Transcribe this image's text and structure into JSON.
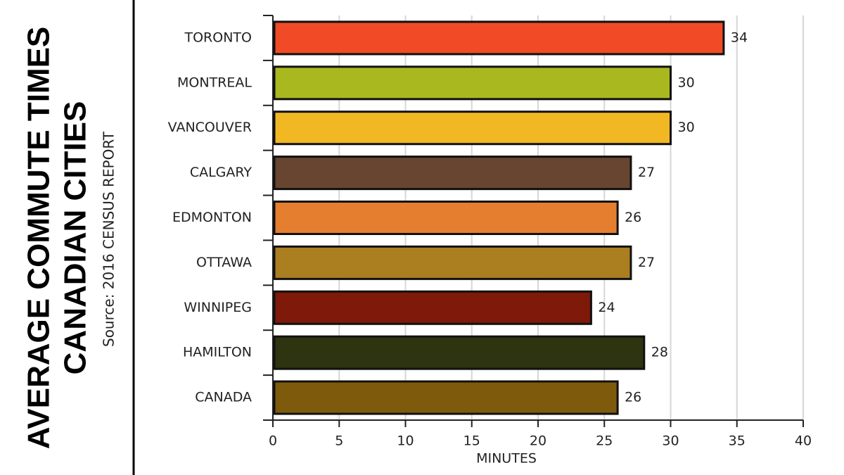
{
  "chart_data": {
    "type": "bar",
    "orientation": "horizontal",
    "title": "AVERAGE COMMUTE TIMES",
    "subtitle": "CANADIAN CITIES",
    "source": "Source: 2016 CENSUS REPORT",
    "xlabel": "MINUTES",
    "categories": [
      "TORONTO",
      "MONTREAL",
      "VANCOUVER",
      "CALGARY",
      "EDMONTON",
      "OTTAWA",
      "WINNIPEG",
      "HAMILTON",
      "CANADA"
    ],
    "values": [
      34,
      30,
      30,
      27,
      26,
      27,
      24,
      28,
      26
    ],
    "colors": [
      "#f04b26",
      "#a9b81f",
      "#f2b824",
      "#684530",
      "#e67e30",
      "#ab7e20",
      "#7f190a",
      "#2e3310",
      "#7e5a0c"
    ],
    "xlim": [
      0,
      40
    ],
    "xticks": [
      0,
      5,
      10,
      15,
      20,
      25,
      30,
      35,
      40
    ],
    "grid": true
  }
}
